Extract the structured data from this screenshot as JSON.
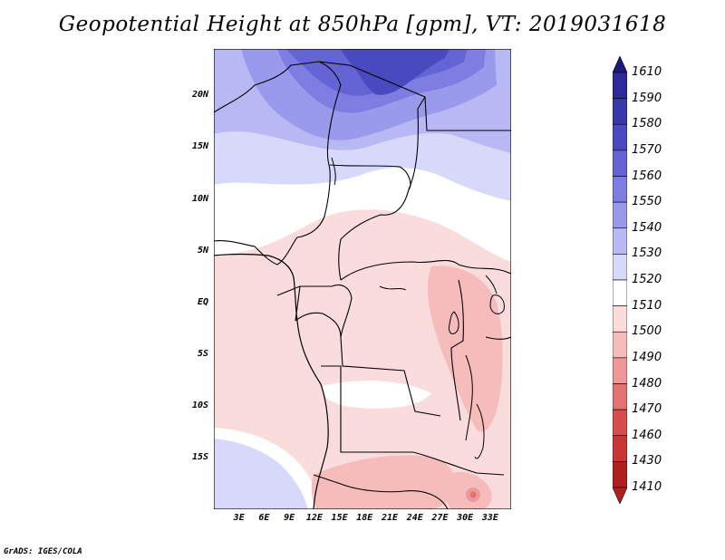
{
  "title": "Geopotential Height at 850hPa [gpm], VT: 2019031618",
  "credit": "GrADS: IGES/COLA",
  "map": {
    "lon_range": [
      0,
      35.5
    ],
    "lat_range": [
      -20,
      24.5
    ],
    "lat_ticks": [
      "20N",
      "15N",
      "10N",
      "5N",
      "EQ",
      "5S",
      "10S",
      "15S"
    ],
    "lat_values": [
      20,
      15,
      10,
      5,
      0,
      -5,
      -10,
      -15
    ],
    "lon_ticks": [
      "3E",
      "6E",
      "9E",
      "12E",
      "15E",
      "18E",
      "21E",
      "24E",
      "27E",
      "30E",
      "33E"
    ],
    "lon_values": [
      3,
      6,
      9,
      12,
      15,
      18,
      21,
      24,
      27,
      30,
      33
    ],
    "colors": {
      "1610": "#21177a",
      "1590": "#2d2b9a",
      "1580": "#3838ad",
      "1570": "#4a4ac0",
      "1560": "#6464d4",
      "1550": "#7e7ee2",
      "1540": "#9a9aec",
      "1530": "#b8b8f4",
      "1520": "#d8d8fa",
      "1510": "#ffffff",
      "1500": "#fbdcdc",
      "1490": "#f6bcbc",
      "1480": "#ee9898",
      "1470": "#e37272",
      "1460": "#d84e4e",
      "1430": "#c93636",
      "1410": "#b02020"
    }
  },
  "colorbar": {
    "labels": [
      "1610",
      "1590",
      "1580",
      "1570",
      "1560",
      "1550",
      "1540",
      "1530",
      "1520",
      "1510",
      "1500",
      "1490",
      "1480",
      "1470",
      "1460",
      "1430",
      "1410"
    ]
  }
}
